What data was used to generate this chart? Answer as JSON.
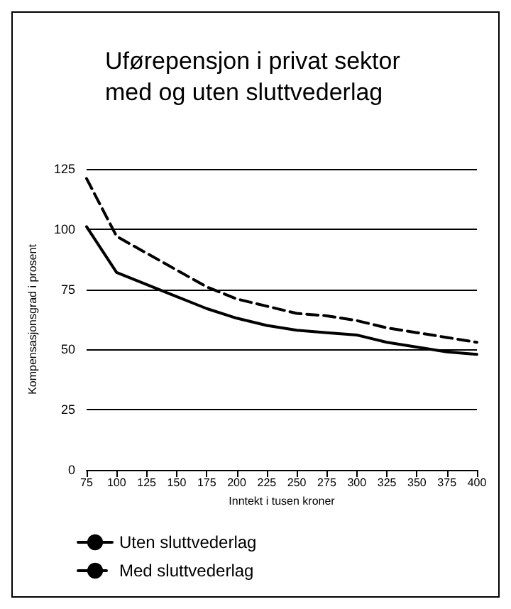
{
  "chart_data": {
    "type": "line",
    "title": "Uførepensjon i privat sektor\nmed og uten sluttvederlag",
    "xlabel": "Inntekt i tusen kroner",
    "ylabel": "Kompensasjonsgrad i prosent",
    "x": [
      75,
      100,
      125,
      150,
      175,
      200,
      225,
      250,
      275,
      300,
      325,
      350,
      375,
      400
    ],
    "series": [
      {
        "name": "Uten sluttvederlag",
        "color": "#000000",
        "line_style": "solid",
        "values": [
          101,
          82,
          77,
          72,
          67,
          63,
          60,
          58,
          57,
          56,
          53,
          51,
          49,
          48
        ]
      },
      {
        "name": "Med sluttvederlag",
        "color": "#000000",
        "line_style": "dashed",
        "values": [
          121,
          97,
          90,
          83,
          76,
          71,
          68,
          65,
          64,
          62,
          59,
          57,
          55,
          53
        ]
      }
    ],
    "xlim": [
      75,
      400
    ],
    "xticks": [
      75,
      100,
      125,
      150,
      175,
      200,
      225,
      250,
      275,
      300,
      325,
      350,
      375,
      400
    ],
    "ylim": [
      0,
      125
    ],
    "yticks": [
      0,
      25,
      50,
      75,
      100,
      125
    ],
    "grid": "y",
    "legend": "bottom left",
    "marker": "none"
  }
}
